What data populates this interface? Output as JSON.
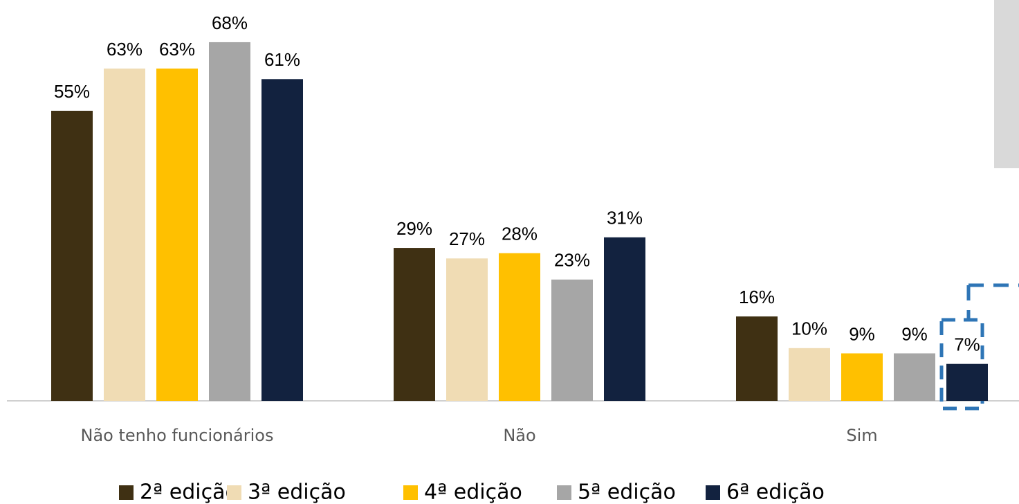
{
  "chart_data": {
    "type": "bar",
    "categories": [
      "Não tenho funcionários",
      "Não",
      "Sim"
    ],
    "series": [
      {
        "name": "2ª edição",
        "color": "#3f3013",
        "values": [
          55,
          29,
          16
        ],
        "value_labels": [
          "55%",
          "29%",
          "16%"
        ]
      },
      {
        "name": "3ª edição",
        "color": "#f0dcb4",
        "values": [
          63,
          27,
          10
        ],
        "value_labels": [
          "63%",
          "27%",
          "10%"
        ]
      },
      {
        "name": "4ª edição",
        "color": "#ffc000",
        "values": [
          63,
          28,
          9
        ],
        "value_labels": [
          "63%",
          "28%",
          "9%"
        ]
      },
      {
        "name": "5ª edição",
        "color": "#a6a6a6",
        "values": [
          68,
          23,
          9
        ],
        "value_labels": [
          "68%",
          "23%",
          "9%"
        ]
      },
      {
        "name": "6ª edição",
        "color": "#12223f",
        "values": [
          61,
          31,
          7
        ],
        "value_labels": [
          "61%",
          "31%",
          "7%"
        ]
      }
    ],
    "ylim": [
      0,
      76
    ]
  }
}
